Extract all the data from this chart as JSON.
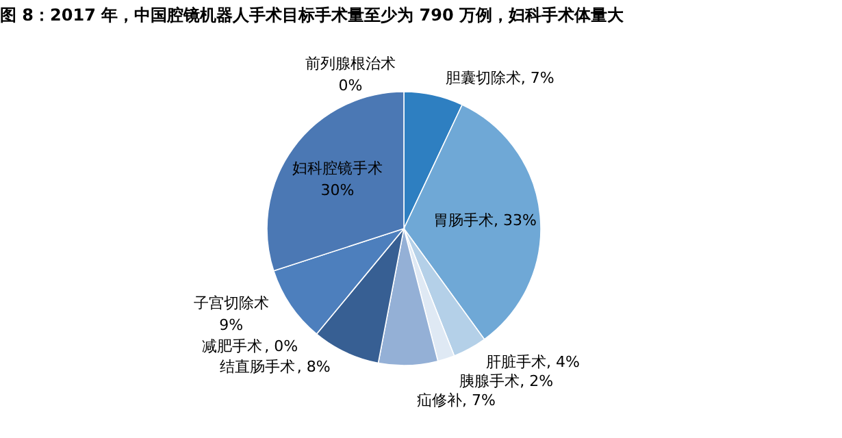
{
  "chart_data": {
    "type": "pie",
    "title": "图 8：2017 年，中国腔镜机器人手术目标手术量至少为 790 万例，妇科手术体量大",
    "categories": [
      "胆囊切除术",
      "胃肠手术",
      "肝脏手术",
      "胰腺手术",
      "疝修补",
      "结直肠手术",
      "减肥手术",
      "子宫切除术",
      "妇科腔镜手术",
      "前列腺根治术"
    ],
    "values": [
      7,
      33,
      4,
      2,
      7,
      8,
      0,
      9,
      30,
      0
    ],
    "colors": [
      "#2e7fc1",
      "#6fa8d6",
      "#b4d0e8",
      "#dfe9f4",
      "#94b0d6",
      "#375f93",
      "#3f6aa3",
      "#4d7fbd",
      "#4b78b4",
      "#5a8ac6"
    ],
    "value_labels": [
      ", 7%",
      ", 33%",
      ", 4%",
      ", 2%",
      ", 7%",
      ", 8%",
      ", 0%",
      "9%",
      "30%",
      "0%"
    ],
    "legend": false
  }
}
